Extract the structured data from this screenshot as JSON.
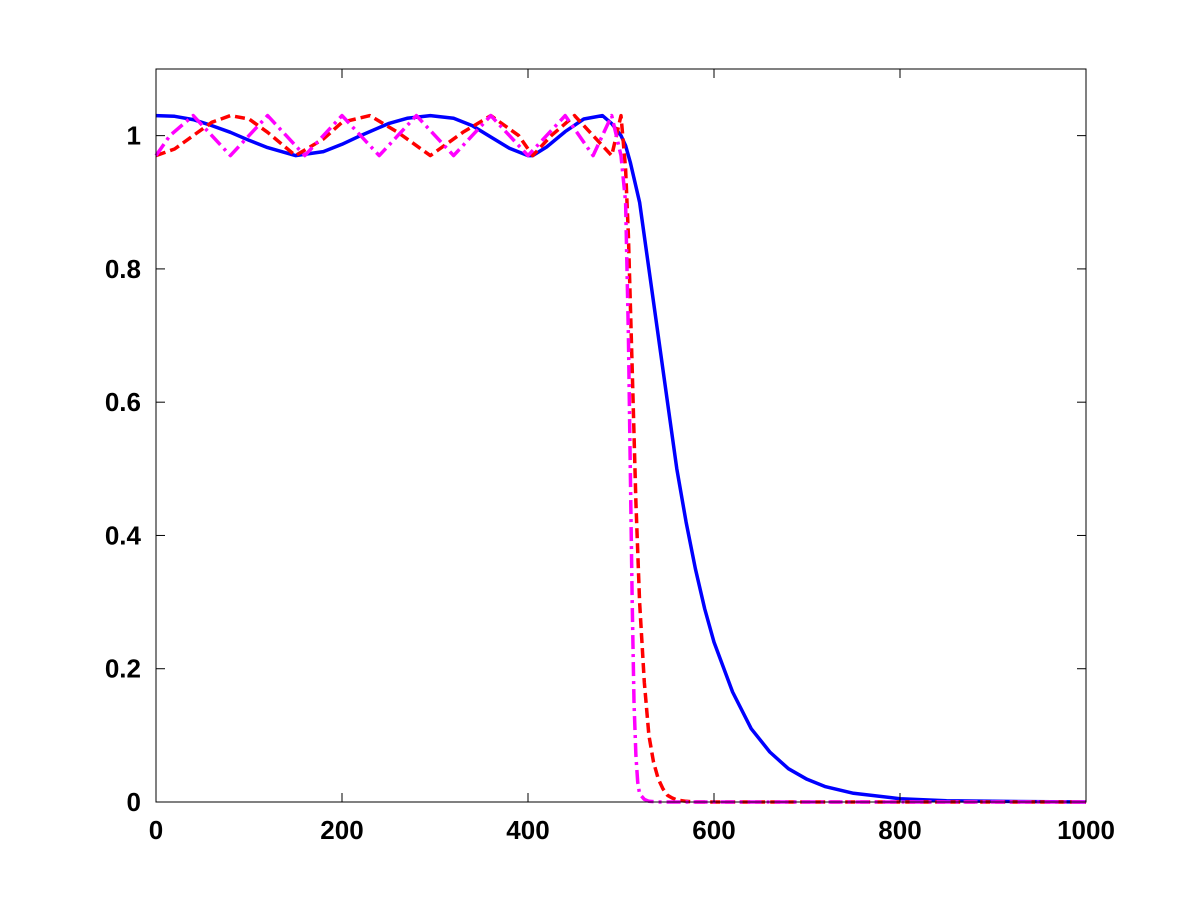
{
  "chart_data": {
    "type": "line",
    "title": "",
    "xlabel": "",
    "ylabel": "",
    "xlim": [
      0,
      1000
    ],
    "ylim": [
      0,
      1.1
    ],
    "grid": false,
    "legend": "none",
    "x_ticks": [
      0,
      200,
      400,
      600,
      800,
      1000
    ],
    "y_ticks": [
      0,
      0.2,
      0.4,
      0.6,
      0.8,
      1
    ],
    "x_tick_labels": [
      "0",
      "200",
      "400",
      "600",
      "800",
      "1000"
    ],
    "y_tick_labels": [
      "0",
      "0.2",
      "0.4",
      "0.6",
      "0.8",
      "1"
    ],
    "series": [
      {
        "color": "#0000ff",
        "style": "solid",
        "x": [
          0,
          20,
          40,
          60,
          80,
          100,
          120,
          150,
          180,
          200,
          220,
          250,
          270,
          295,
          320,
          340,
          360,
          380,
          400,
          405,
          420,
          440,
          460,
          480,
          490,
          500,
          505,
          510,
          520,
          530,
          540,
          550,
          560,
          570,
          580,
          590,
          600,
          620,
          640,
          660,
          680,
          700,
          720,
          750,
          800,
          850,
          900,
          1000
        ],
        "y": [
          1.03,
          1.029,
          1.024,
          1.015,
          1.005,
          0.993,
          0.982,
          0.97,
          0.976,
          0.987,
          1.0,
          1.018,
          1.026,
          1.03,
          1.026,
          1.015,
          0.998,
          0.981,
          0.97,
          0.97,
          0.983,
          1.006,
          1.025,
          1.03,
          1.018,
          1.0,
          0.985,
          0.96,
          0.9,
          0.8,
          0.7,
          0.6,
          0.5,
          0.42,
          0.35,
          0.29,
          0.24,
          0.165,
          0.11,
          0.075,
          0.05,
          0.034,
          0.023,
          0.013,
          0.005,
          0.002,
          0.001,
          0.0
        ]
      },
      {
        "color": "#ff0000",
        "style": "dashed",
        "x": [
          0,
          20,
          40,
          60,
          80,
          100,
          120,
          150,
          180,
          200,
          230,
          260,
          295,
          330,
          360,
          390,
          405,
          425,
          450,
          470,
          490,
          500,
          505,
          508,
          512,
          516,
          520,
          525,
          530,
          535,
          540,
          545,
          550,
          555,
          560,
          570,
          580,
          600,
          700,
          800,
          1000
        ],
        "y": [
          0.97,
          0.98,
          1.0,
          1.02,
          1.03,
          1.025,
          1.005,
          0.97,
          0.995,
          1.02,
          1.03,
          1.005,
          0.97,
          1.005,
          1.03,
          1.0,
          0.97,
          1.0,
          1.03,
          1.0,
          0.97,
          1.03,
          0.95,
          0.85,
          0.65,
          0.45,
          0.3,
          0.18,
          0.1,
          0.06,
          0.035,
          0.02,
          0.01,
          0.006,
          0.003,
          0.001,
          0.0,
          0.0,
          0.0,
          0.0,
          0.0
        ]
      },
      {
        "color": "#ff00ff",
        "style": "dashdot",
        "x": [
          0,
          15,
          40,
          60,
          80,
          100,
          120,
          140,
          160,
          180,
          200,
          220,
          240,
          260,
          280,
          300,
          320,
          340,
          360,
          380,
          400,
          420,
          440,
          455,
          470,
          480,
          490,
          500,
          505,
          508,
          510,
          512,
          514,
          516,
          518,
          520,
          525,
          530,
          540,
          560,
          600,
          800,
          1000
        ],
        "y": [
          0.97,
          1.0,
          1.03,
          1.0,
          0.97,
          1.0,
          1.03,
          1.0,
          0.97,
          1.0,
          1.03,
          1.0,
          0.97,
          1.0,
          1.03,
          1.0,
          0.97,
          1.0,
          1.03,
          1.0,
          0.97,
          1.0,
          1.03,
          1.0,
          0.97,
          1.0,
          1.03,
          0.97,
          0.9,
          0.7,
          0.5,
          0.3,
          0.15,
          0.07,
          0.03,
          0.012,
          0.004,
          0.001,
          0.0,
          0.0,
          0.0,
          0.0,
          0.0
        ]
      }
    ]
  }
}
